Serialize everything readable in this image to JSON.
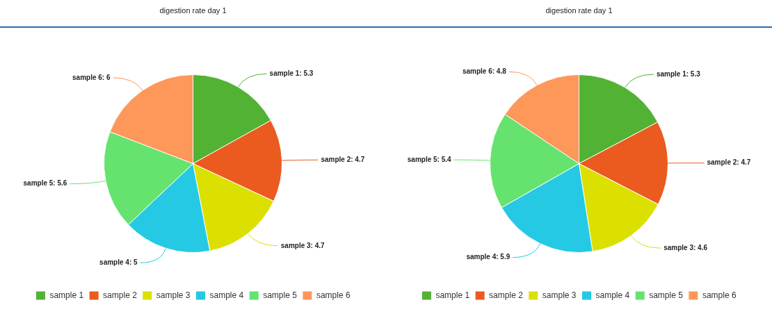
{
  "chart_data": [
    {
      "type": "pie",
      "title": "digestion rate day 1",
      "categories": [
        "sample 1",
        "sample 2",
        "sample 3",
        "sample 4",
        "sample 5",
        "sample 6"
      ],
      "values": [
        5.3,
        4.7,
        4.7,
        5,
        5.6,
        6
      ],
      "value_labels": [
        "sample 1: 5.3",
        "sample 2: 4.7",
        "sample 3: 4.7",
        "sample 4: 5",
        "sample 5: 5.6",
        "sample 6: 6"
      ],
      "colors": [
        "#52b234",
        "#eb5a1e",
        "#dce000",
        "#26c9e3",
        "#65e36e",
        "#fd985a"
      ],
      "legend": "bottom"
    },
    {
      "type": "pie",
      "title": "digestion rate day 1",
      "categories": [
        "sample 1",
        "sample 2",
        "sample 3",
        "sample 4",
        "sample 5",
        "sample 6"
      ],
      "values": [
        5.3,
        4.7,
        4.6,
        5.9,
        5.4,
        4.8
      ],
      "value_labels": [
        "sample 1: 5.3",
        "sample 2: 4.7",
        "sample 3: 4.6",
        "sample 4: 5.9",
        "sample 5: 5.4",
        "sample 6: 4.8"
      ],
      "colors": [
        "#52b234",
        "#eb5a1e",
        "#dce000",
        "#26c9e3",
        "#65e36e",
        "#fd985a"
      ],
      "legend": "bottom"
    }
  ]
}
